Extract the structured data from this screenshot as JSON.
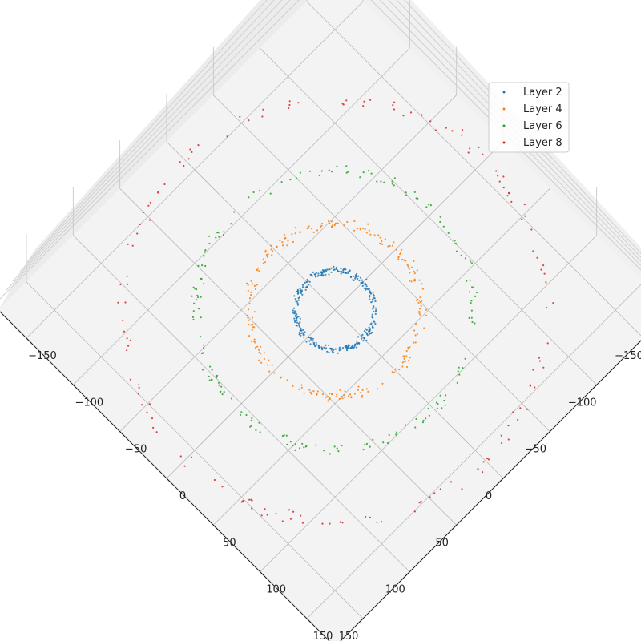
{
  "chart_data": {
    "type": "scatter",
    "projection": "3d",
    "view": "top-down, rotated 45 degrees",
    "grid": true,
    "legend_position": "top-right",
    "xlim": [
      -180,
      180
    ],
    "ylim": [
      -180,
      180
    ],
    "zlim": [
      -400,
      400
    ],
    "x_ticks": [
      "−150",
      "−100",
      "−50",
      "0",
      "50",
      "100",
      "150"
    ],
    "y_ticks": [
      "−150",
      "−100",
      "−50",
      "0",
      "50",
      "100",
      "150"
    ],
    "z_ticks": [
      "400",
      "200",
      "0",
      "−200",
      "−400"
    ],
    "series": [
      {
        "name": "Layer 2",
        "color": "#1f77b4",
        "radius": 30,
        "jitter": 4,
        "count": 320
      },
      {
        "name": "Layer 4",
        "color": "#ff7f0e",
        "radius": 65,
        "jitter": 6,
        "count": 240
      },
      {
        "name": "Layer 6",
        "color": "#2ca02c",
        "radius": 105,
        "jitter": 7,
        "count": 180
      },
      {
        "name": "Layer 8",
        "color": "#d62728",
        "radius": 160,
        "jitter": 8,
        "count": 150
      }
    ]
  }
}
